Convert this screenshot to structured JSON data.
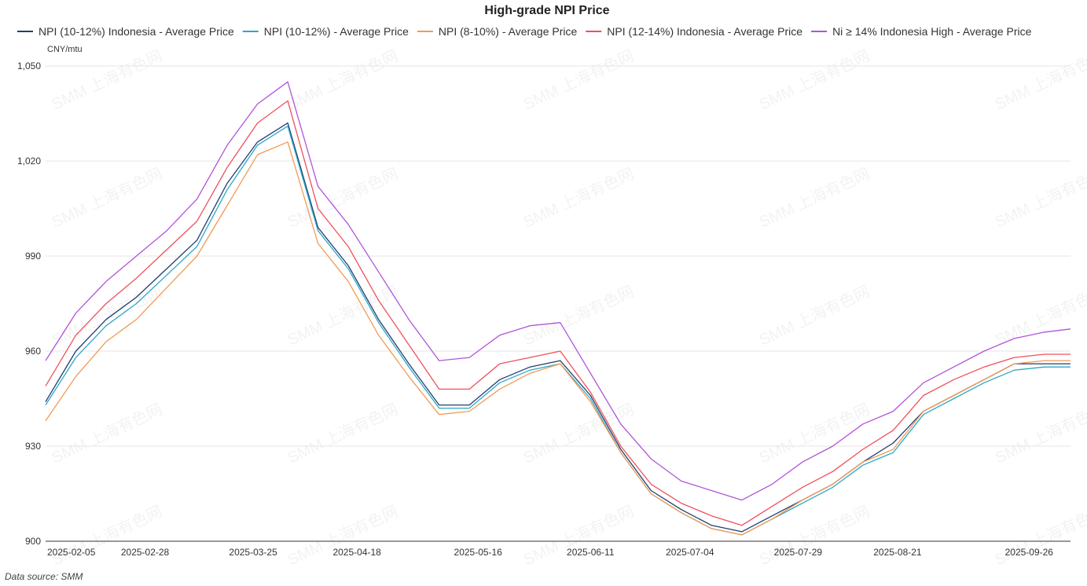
{
  "chart_data": {
    "type": "line",
    "title": "High-grade NPI Price",
    "unit": "CNY/mtu",
    "ylim": [
      900,
      1050
    ],
    "yticks": [
      900,
      930,
      960,
      990,
      1020,
      1050
    ],
    "ytick_labels": [
      "900",
      "930",
      "960",
      "990",
      "1,020",
      "1,050"
    ],
    "x_tick_labels": [
      "2025-02-05",
      "2025-02-28",
      "2025-03-25",
      "2025-04-18",
      "2025-05-16",
      "2025-06-11",
      "2025-07-04",
      "2025-07-29",
      "2025-08-21",
      "2025-09-26"
    ],
    "x": [
      "2025-02-05",
      "2025-02-12",
      "2025-02-19",
      "2025-02-26",
      "2025-03-05",
      "2025-03-12",
      "2025-03-19",
      "2025-03-26",
      "2025-04-02",
      "2025-04-09",
      "2025-04-16",
      "2025-04-23",
      "2025-04-30",
      "2025-05-07",
      "2025-05-14",
      "2025-05-21",
      "2025-05-28",
      "2025-06-04",
      "2025-06-11",
      "2025-06-18",
      "2025-06-25",
      "2025-07-02",
      "2025-07-09",
      "2025-07-16",
      "2025-07-23",
      "2025-07-30",
      "2025-08-06",
      "2025-08-13",
      "2025-08-20",
      "2025-08-27",
      "2025-09-03",
      "2025-09-10",
      "2025-09-17",
      "2025-09-24",
      "2025-09-30"
    ],
    "grid": true,
    "legend_position": "top",
    "series": [
      {
        "name": "NPI (10-12%) Indonesia - Average Price",
        "color": "#1f3f6e",
        "values": [
          944,
          960,
          970,
          977,
          986,
          995,
          1013,
          1026,
          1032,
          999,
          987,
          970,
          956,
          943,
          943,
          951,
          955,
          957,
          946,
          929,
          916,
          910,
          905,
          903,
          908,
          913,
          918,
          925,
          931,
          941,
          946,
          951,
          956,
          956,
          956
        ]
      },
      {
        "name": "NPI (10-12%) - Average Price",
        "color": "#2fa7c7",
        "values": [
          943,
          958,
          968,
          975,
          984,
          993,
          1011,
          1025,
          1031,
          998,
          986,
          969,
          955,
          942,
          942,
          950,
          954,
          956,
          945,
          928,
          915,
          909,
          904,
          902,
          907,
          912,
          917,
          924,
          928,
          940,
          945,
          950,
          954,
          955,
          955
        ]
      },
      {
        "name": "NPI (8-10%) - Average Price",
        "color": "#f29a55",
        "values": [
          938,
          952,
          963,
          970,
          980,
          990,
          1006,
          1022,
          1026,
          994,
          982,
          965,
          952,
          940,
          941,
          948,
          953,
          956,
          944,
          928,
          915,
          909,
          904,
          902,
          907,
          913,
          918,
          925,
          929,
          941,
          946,
          951,
          956,
          957,
          957
        ]
      },
      {
        "name": "NPI (12-14%) Indonesia - Average Price",
        "color": "#f0505a",
        "values": [
          949,
          965,
          975,
          983,
          992,
          1001,
          1018,
          1032,
          1039,
          1005,
          993,
          976,
          962,
          948,
          948,
          956,
          958,
          960,
          947,
          930,
          918,
          912,
          908,
          905,
          911,
          917,
          922,
          929,
          935,
          946,
          951,
          955,
          958,
          959,
          959
        ]
      },
      {
        "name": "Ni ≥ 14% Indonesia High - Average Price",
        "color": "#b054d8",
        "values": [
          957,
          972,
          982,
          990,
          998,
          1008,
          1025,
          1038,
          1045,
          1012,
          1000,
          985,
          970,
          957,
          958,
          965,
          968,
          969,
          953,
          937,
          926,
          919,
          916,
          913,
          918,
          925,
          930,
          937,
          941,
          950,
          955,
          960,
          964,
          966,
          967
        ]
      }
    ]
  },
  "source_label": "Data source:  SMM",
  "watermark": "SMM 上海有色网"
}
